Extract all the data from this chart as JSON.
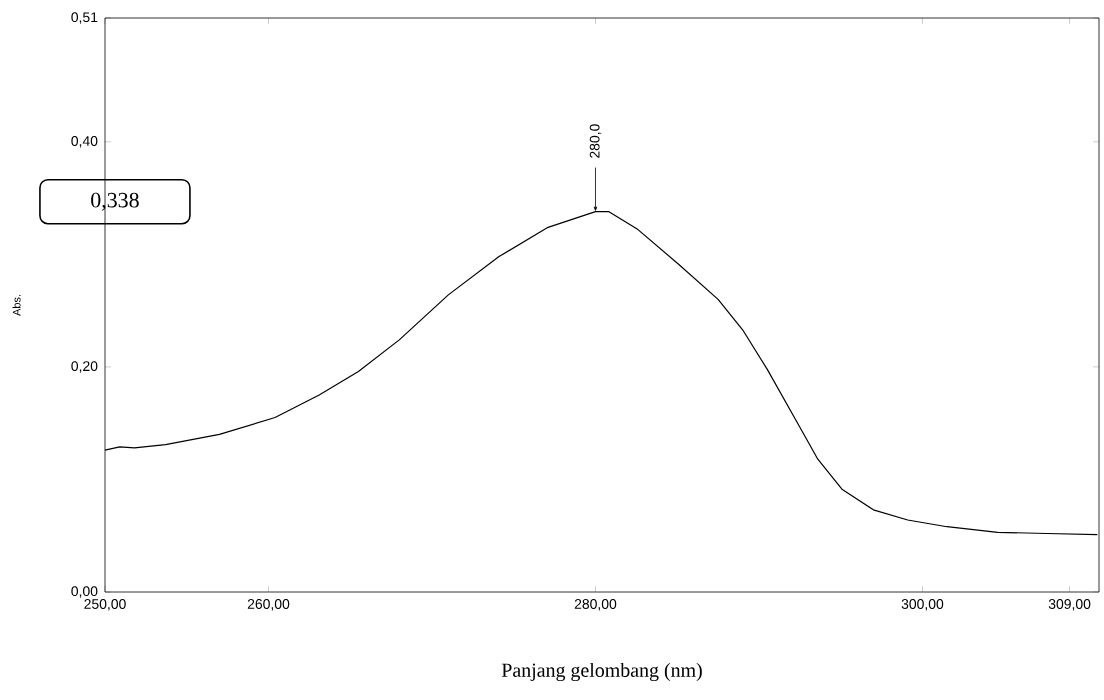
{
  "chart_data": {
    "type": "line",
    "xlabel": "Panjang gelombang (nm)",
    "ylabel": "Abs.",
    "xlim": [
      250,
      310.8
    ],
    "ylim": [
      0,
      0.51
    ],
    "xticks": [
      {
        "value": 250,
        "label": "250,00"
      },
      {
        "value": 260,
        "label": "260,00"
      },
      {
        "value": 280,
        "label": "280,00"
      },
      {
        "value": 300,
        "label": "300,00"
      },
      {
        "value": 309,
        "label": "309,00"
      }
    ],
    "yticks": [
      {
        "value": 0,
        "label": "0,00"
      },
      {
        "value": 0.2,
        "label": "0,20"
      },
      {
        "value": 0.4,
        "label": "0,40"
      },
      {
        "value": 0.51,
        "label": "0,51"
      }
    ],
    "grid": false,
    "marker": "none",
    "line_style": "solid",
    "series": [
      {
        "color": "#000000",
        "x": [
          250,
          250.9,
          251.8,
          253.7,
          257.0,
          260.4,
          263.1,
          265.5,
          268.0,
          271.0,
          274.1,
          277.1,
          280.0,
          280.8,
          282.6,
          285.1,
          287.5,
          289.0,
          290.5,
          292.4,
          293.6,
          295.1,
          297.0,
          299.1,
          301.5,
          304.6,
          307.6,
          310.7
        ],
        "values": [
          0.126,
          0.129,
          0.128,
          0.131,
          0.14,
          0.155,
          0.175,
          0.196,
          0.224,
          0.264,
          0.298,
          0.324,
          0.338,
          0.338,
          0.322,
          0.291,
          0.26,
          0.233,
          0.198,
          0.149,
          0.118,
          0.091,
          0.073,
          0.064,
          0.058,
          0.053,
          0.052,
          0.051
        ]
      }
    ],
    "annotations": [
      {
        "text": "280,0",
        "x": 280,
        "y": 0.338
      },
      "0,338"
    ]
  }
}
